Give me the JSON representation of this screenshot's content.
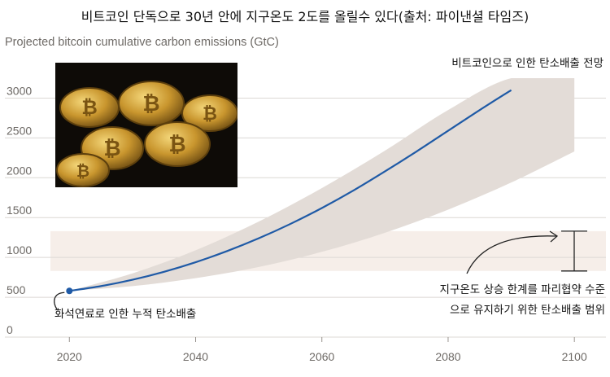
{
  "page_title": "비트코인 단독으로 30년 안에 지구온도 2도를 올릴수 있다(출처: 파이낸셜 타임즈)",
  "chart_data": {
    "type": "line",
    "title": "Projected bitcoin cumulative carbon emissions (GtC)",
    "xlabel": "",
    "ylabel": "",
    "xlim": [
      2017,
      2105
    ],
    "ylim": [
      0,
      3250
    ],
    "x_ticks": [
      2020,
      2040,
      2060,
      2080,
      2100
    ],
    "y_ticks": [
      0,
      500,
      1000,
      1500,
      2000,
      2500,
      3000
    ],
    "grid": true,
    "series": [
      {
        "name": "비트코인으로 인한 탄소배출 전망",
        "x": [
          2020,
          2025,
          2030,
          2035,
          2040,
          2045,
          2050,
          2055,
          2060,
          2065,
          2070,
          2075,
          2080,
          2085,
          2090
        ],
        "y": [
          580,
          640,
          720,
          820,
          940,
          1080,
          1240,
          1420,
          1620,
          1840,
          2080,
          2330,
          2590,
          2850,
          3100
        ]
      }
    ],
    "uncertainty_band": {
      "x": [
        2020,
        2030,
        2040,
        2050,
        2060,
        2070,
        2080,
        2090,
        2100
      ],
      "low": [
        580,
        640,
        740,
        880,
        1070,
        1310,
        1600,
        1940,
        2330
      ],
      "high": [
        580,
        800,
        1090,
        1450,
        1870,
        2340,
        2850,
        3250,
        3250
      ]
    },
    "range_2c": {
      "low": 830,
      "high": 1330
    },
    "current_point": {
      "x": 2020,
      "y": 580
    },
    "annotations": {
      "projection": "비트코인으로 인한 탄소배출 전망",
      "range_line1": "지구온도 상승 한계를 파리협약 수준",
      "range_line2": "으로 유지하기 위한 탄소배출 범위",
      "fossil": "화석연료로 인한 누적 탄소배출"
    },
    "colors": {
      "line": "#1f5aa6",
      "band": "#e3dcd7",
      "range": "#f6eee9",
      "grid": "#dcd8d4",
      "text": "#6e6a66"
    }
  }
}
